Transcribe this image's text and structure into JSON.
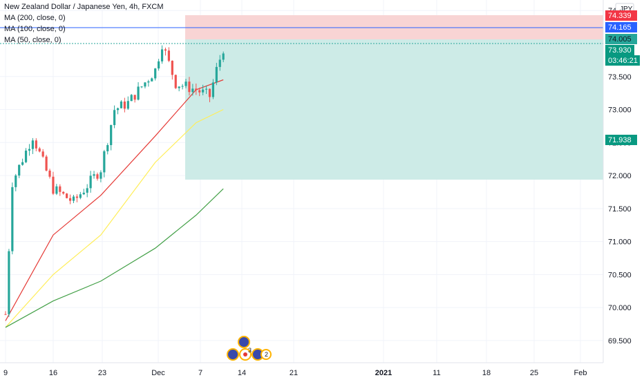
{
  "header": {
    "symbol_title": "New Zealand Dollar / Japanese Yen, 4h, FXCM",
    "indicators": [
      "MA (200, close, 0)",
      "MA (100, close, 0)",
      "MA (50, close, 0)"
    ],
    "currency_label": "JPY"
  },
  "colors": {
    "up": "#26a69a",
    "down": "#ef5350",
    "ma50": "#e53935",
    "ma100": "#ffee58",
    "ma200": "#43a047",
    "stop_zone": "#f8d4d4",
    "target_zone": "#cdebe7",
    "price_badge": "#26a69a",
    "stop_badge": "#f23645",
    "entry_badge": "#2962ff",
    "target_badge": "#089981"
  },
  "price_badges": {
    "stop": "74.339",
    "entry": "74.165",
    "current": "74.005",
    "alt": "73.930",
    "countdown": "03:46:21",
    "target": "71.938"
  },
  "y_axis": {
    "ticks": [
      "74.500",
      "73.500",
      "73.000",
      "72.500",
      "72.000",
      "71.500",
      "71.000",
      "70.500",
      "70.000",
      "69.500"
    ]
  },
  "x_axis": {
    "ticks": [
      "9",
      "16",
      "23",
      "Dec",
      "7",
      "14",
      "21",
      "2021",
      "11",
      "18",
      "25",
      "Feb"
    ]
  },
  "event_markers": {
    "count_a": "3",
    "count_b": "2"
  },
  "chart_data": {
    "type": "line",
    "title": "New Zealand Dollar / Japanese Yen, 4h, FXCM",
    "ylim": [
      69.3,
      74.6
    ],
    "series": [
      {
        "name": "MA (50, close, 0)",
        "x": [
          "Nov 9",
          "Nov 16",
          "Nov 23",
          "Dec 1",
          "Dec 7",
          "Dec 11"
        ],
        "values": [
          69.8,
          71.1,
          71.7,
          72.6,
          73.3,
          73.45
        ]
      },
      {
        "name": "MA (100, close, 0)",
        "x": [
          "Nov 9",
          "Nov 16",
          "Nov 23",
          "Dec 1",
          "Dec 7",
          "Dec 11"
        ],
        "values": [
          69.7,
          70.5,
          71.1,
          72.2,
          72.8,
          73.0
        ]
      },
      {
        "name": "MA (200, close, 0)",
        "x": [
          "Nov 9",
          "Nov 16",
          "Nov 23",
          "Dec 1",
          "Dec 7",
          "Dec 11"
        ],
        "values": [
          69.7,
          70.1,
          70.4,
          70.9,
          71.4,
          71.8
        ]
      }
    ],
    "price": {
      "x": [
        "Nov 9",
        "Nov 10",
        "Nov 13",
        "Nov 16",
        "Nov 19",
        "Nov 23",
        "Nov 25",
        "Nov 27",
        "Dec 1",
        "Dec 2",
        "Dec 3",
        "Dec 4",
        "Dec 7",
        "Dec 9",
        "Dec 10",
        "Dec 11"
      ],
      "close": [
        69.9,
        71.9,
        72.6,
        71.8,
        71.6,
        72.1,
        73.0,
        73.1,
        73.6,
        74.0,
        73.7,
        73.4,
        73.3,
        73.2,
        73.6,
        73.93
      ]
    },
    "position_tool": {
      "stop": 74.339,
      "entry": 74.165,
      "target": 71.938
    },
    "grid": true
  }
}
